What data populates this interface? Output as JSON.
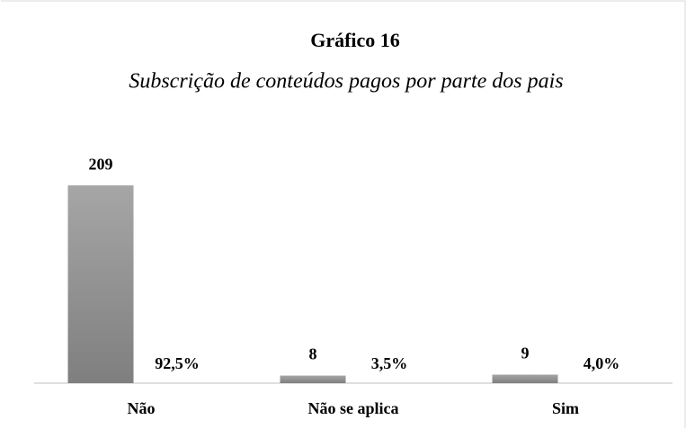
{
  "chart_data": {
    "type": "bar",
    "title": "Gráfico 16",
    "subtitle": "Subscrição de conteúdos pagos por parte dos pais",
    "categories": [
      "Não",
      "Não se aplica",
      "Sim"
    ],
    "series": [
      {
        "color": "#8f8f8f",
        "values": [
          209,
          8,
          9
        ]
      },
      {
        "color": "#8f8f8f",
        "values": [
          92.5,
          3.5,
          4.0
        ],
        "value_labels": [
          "92,5%",
          "3,5%",
          "4,0%"
        ]
      }
    ],
    "ylim": [
      0,
      250
    ]
  }
}
